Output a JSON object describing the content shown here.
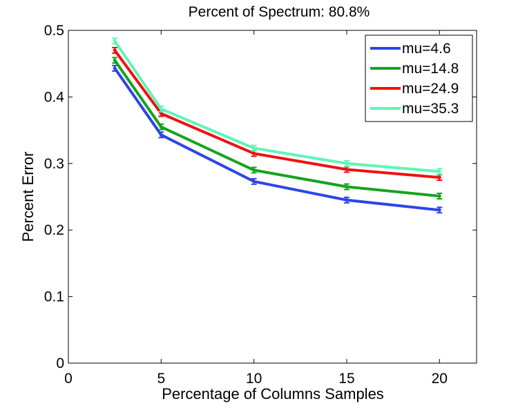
{
  "chart_data": {
    "type": "line",
    "title": "Percent of Spectrum: 80.8%",
    "xlabel": "Percentage of Columns Samples",
    "ylabel": "Percent Error",
    "xlim": [
      0,
      22
    ],
    "ylim": [
      0,
      0.5
    ],
    "xticks": [
      "0",
      "5",
      "10",
      "15",
      "20"
    ],
    "yticks": [
      "0",
      "0.1",
      "0.2",
      "0.3",
      "0.4",
      "0.5"
    ],
    "x": [
      2.5,
      5,
      10,
      15,
      20
    ],
    "legend_position": "top-right",
    "series": [
      {
        "name": "mu=4.6",
        "color": "#2c45e8",
        "values": [
          0.443,
          0.343,
          0.273,
          0.245,
          0.23
        ]
      },
      {
        "name": "mu=14.8",
        "color": "#16a31c",
        "values": [
          0.455,
          0.355,
          0.29,
          0.265,
          0.251
        ]
      },
      {
        "name": "mu=24.9",
        "color": "#f01010",
        "values": [
          0.47,
          0.375,
          0.315,
          0.291,
          0.279
        ]
      },
      {
        "name": "mu=35.3",
        "color": "#5ef5b8",
        "values": [
          0.484,
          0.382,
          0.323,
          0.3,
          0.288
        ]
      }
    ]
  }
}
